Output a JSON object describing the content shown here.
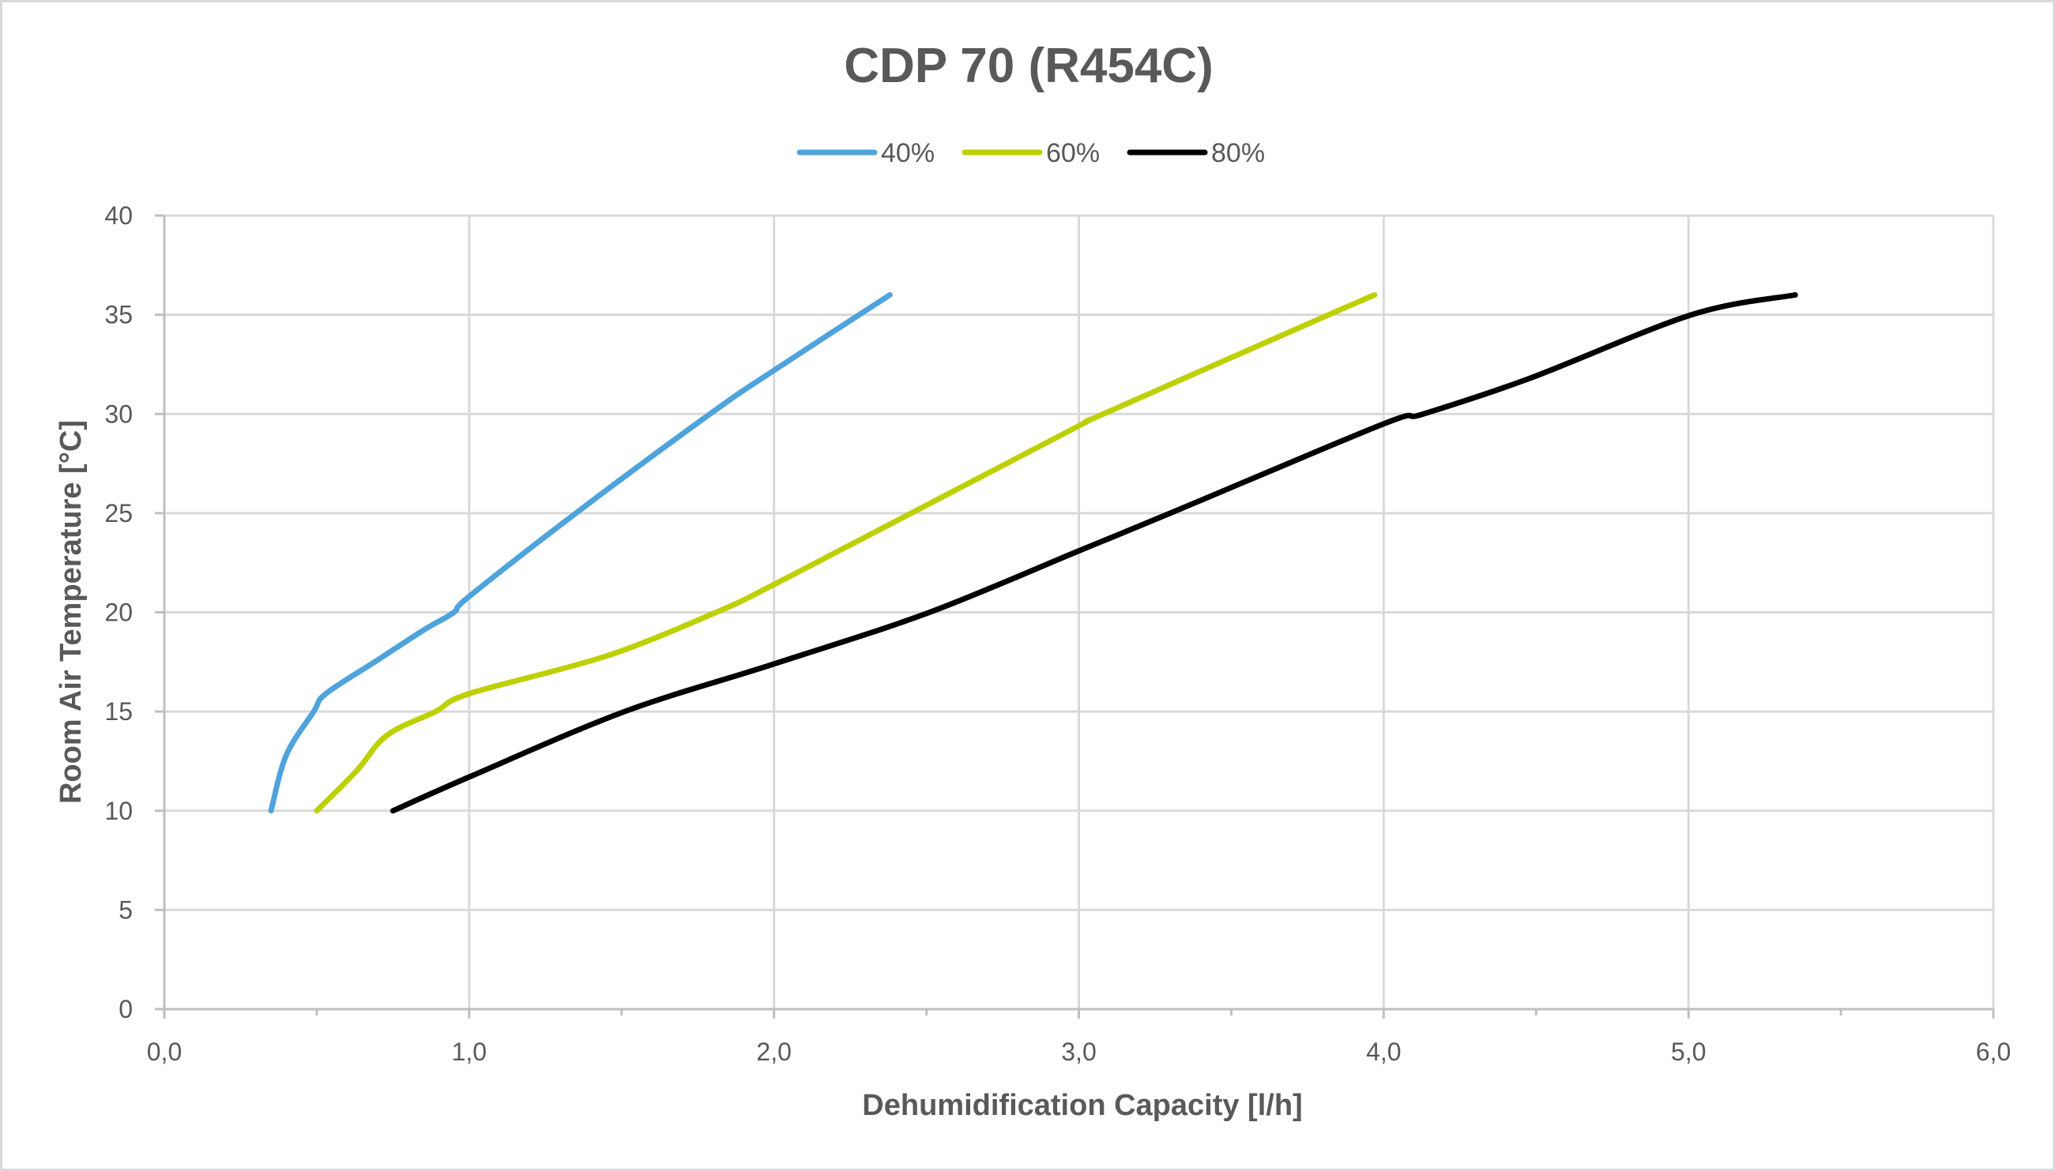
{
  "chart_data": {
    "type": "line",
    "title": "CDP 70 (R454C)",
    "xlabel": "Dehumidification Capacity [l/h]",
    "ylabel": "Room Air Temperature [°C]",
    "xlim": [
      0,
      6
    ],
    "ylim": [
      0,
      40
    ],
    "x_major_step": 1,
    "x_minor_step": 0.5,
    "y_major_step": 5,
    "x_tick_labels": [
      "0,0",
      "1,0",
      "2,0",
      "3,0",
      "4,0",
      "5,0",
      "6,0"
    ],
    "y_tick_labels": [
      "0",
      "5",
      "10",
      "15",
      "20",
      "25",
      "30",
      "35",
      "40"
    ],
    "grid": true,
    "legend_position": "top-center",
    "series": [
      {
        "name": "40%",
        "color": "#4fa3dc",
        "points": [
          [
            0.35,
            10
          ],
          [
            0.4,
            12.8
          ],
          [
            0.49,
            15
          ],
          [
            0.53,
            15.9
          ],
          [
            0.7,
            17.6
          ],
          [
            0.85,
            19.1
          ],
          [
            0.95,
            20
          ],
          [
            1.0,
            20.8
          ],
          [
            1.35,
            25
          ],
          [
            1.79,
            30
          ],
          [
            2.0,
            32.2
          ],
          [
            2.38,
            36
          ]
        ]
      },
      {
        "name": "60%",
        "color": "#bdd000",
        "points": [
          [
            0.5,
            10
          ],
          [
            0.63,
            12.0
          ],
          [
            0.73,
            13.8
          ],
          [
            0.89,
            15
          ],
          [
            1.0,
            15.9
          ],
          [
            1.45,
            17.8
          ],
          [
            1.81,
            20
          ],
          [
            2.0,
            21.4
          ],
          [
            2.45,
            25
          ],
          [
            3.0,
            29.4
          ],
          [
            3.08,
            30
          ],
          [
            3.82,
            35
          ],
          [
            3.97,
            36
          ]
        ]
      },
      {
        "name": "80%",
        "color": "#000000",
        "points": [
          [
            0.75,
            10
          ],
          [
            1.0,
            11.7
          ],
          [
            1.51,
            15
          ],
          [
            2.0,
            17.4
          ],
          [
            2.51,
            20
          ],
          [
            3.0,
            23.1
          ],
          [
            3.3,
            25
          ],
          [
            4.0,
            29.5
          ],
          [
            4.13,
            30
          ],
          [
            4.48,
            31.8
          ],
          [
            5.01,
            35
          ],
          [
            5.35,
            36
          ]
        ]
      }
    ]
  }
}
